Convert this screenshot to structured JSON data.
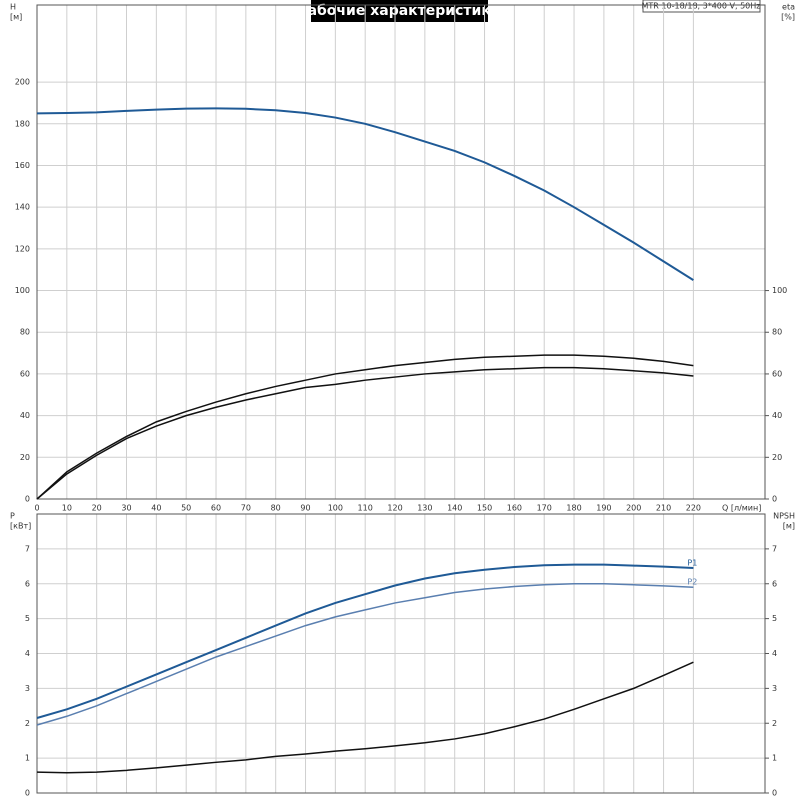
{
  "title": "Рабочие характеристики",
  "model": "MTR 10-18/18, 3*400 V, 50Hz",
  "chart_data": [
    {
      "type": "line",
      "x_label": "Q [л/мин]",
      "y_label": "H",
      "y_unit": "[м]",
      "y2_label": "eta",
      "y2_unit": "[%]",
      "x": [
        0,
        10,
        20,
        30,
        40,
        50,
        60,
        70,
        80,
        90,
        100,
        110,
        120,
        130,
        140,
        150,
        160,
        170,
        180,
        190,
        200,
        210,
        220
      ],
      "xlim": [
        0,
        244
      ],
      "xticks": [
        0,
        10,
        20,
        30,
        40,
        50,
        60,
        70,
        80,
        90,
        100,
        110,
        120,
        130,
        140,
        150,
        160,
        170,
        180,
        190,
        200,
        210,
        220
      ],
      "ylim": [
        0,
        237
      ],
      "yticks": [
        0,
        20,
        40,
        60,
        80,
        100,
        120,
        140,
        160,
        180,
        200
      ],
      "y2lim": [
        0,
        237
      ],
      "y2ticks": [
        0,
        20,
        40,
        60,
        80,
        100
      ],
      "series": [
        {
          "color": "#1f5a96",
          "values": [
            185,
            185.2,
            185.5,
            186.2,
            186.8,
            187.3,
            187.4,
            187.2,
            186.5,
            185.2,
            183,
            180,
            176,
            171.5,
            167,
            161.5,
            155,
            148,
            140,
            131.5,
            123,
            114,
            105
          ]
        },
        {
          "color": "#111111",
          "axis": "y2",
          "values": [
            0,
            13,
            22,
            30,
            37,
            42,
            46.5,
            50.5,
            54,
            57,
            60,
            62,
            64,
            65.5,
            67,
            68,
            68.5,
            69,
            69,
            68.5,
            67.5,
            66,
            64
          ]
        },
        {
          "color": "#111111",
          "axis": "y2",
          "values": [
            0,
            12,
            21,
            29,
            35,
            40,
            44,
            47.5,
            50.5,
            53.5,
            55,
            57,
            58.5,
            60,
            61,
            62,
            62.5,
            63,
            63,
            62.5,
            61.5,
            60.5,
            59
          ]
        }
      ]
    },
    {
      "type": "line",
      "y_label": "P",
      "y_unit": "[кВт]",
      "y2_label": "NPSH",
      "y2_unit": "[м]",
      "x": [
        0,
        10,
        20,
        30,
        40,
        50,
        60,
        70,
        80,
        90,
        100,
        110,
        120,
        130,
        140,
        150,
        160,
        170,
        180,
        190,
        200,
        210,
        220
      ],
      "xlim": [
        0,
        244
      ],
      "xticks": [
        0,
        10,
        20,
        30,
        40,
        50,
        60,
        70,
        80,
        90,
        100,
        110,
        120,
        130,
        140,
        150,
        160,
        170,
        180,
        190,
        200,
        210,
        220
      ],
      "ylim": [
        0,
        8
      ],
      "yticks": [
        0,
        1,
        2,
        3,
        4,
        5,
        6,
        7
      ],
      "y2lim": [
        0,
        8
      ],
      "y2ticks": [
        0,
        1,
        2,
        3,
        4,
        5,
        6,
        7
      ],
      "series": [
        {
          "name": "P1",
          "color": "#1f5a96",
          "values": [
            2.15,
            2.4,
            2.7,
            3.05,
            3.4,
            3.75,
            4.1,
            4.45,
            4.8,
            5.15,
            5.45,
            5.7,
            5.95,
            6.15,
            6.3,
            6.4,
            6.48,
            6.53,
            6.55,
            6.55,
            6.52,
            6.49,
            6.45
          ]
        },
        {
          "name": "P2",
          "color": "#5a7fb0",
          "values": [
            1.95,
            2.2,
            2.5,
            2.85,
            3.2,
            3.55,
            3.9,
            4.2,
            4.5,
            4.8,
            5.05,
            5.25,
            5.45,
            5.6,
            5.75,
            5.85,
            5.92,
            5.97,
            6.0,
            6.0,
            5.97,
            5.94,
            5.9
          ]
        },
        {
          "color": "#111111",
          "axis": "y2",
          "values": [
            0.6,
            0.58,
            0.6,
            0.65,
            0.72,
            0.8,
            0.88,
            0.95,
            1.05,
            1.12,
            1.2,
            1.27,
            1.35,
            1.44,
            1.55,
            1.7,
            1.9,
            2.12,
            2.4,
            2.7,
            3.0,
            3.37,
            3.75
          ]
        }
      ]
    }
  ]
}
